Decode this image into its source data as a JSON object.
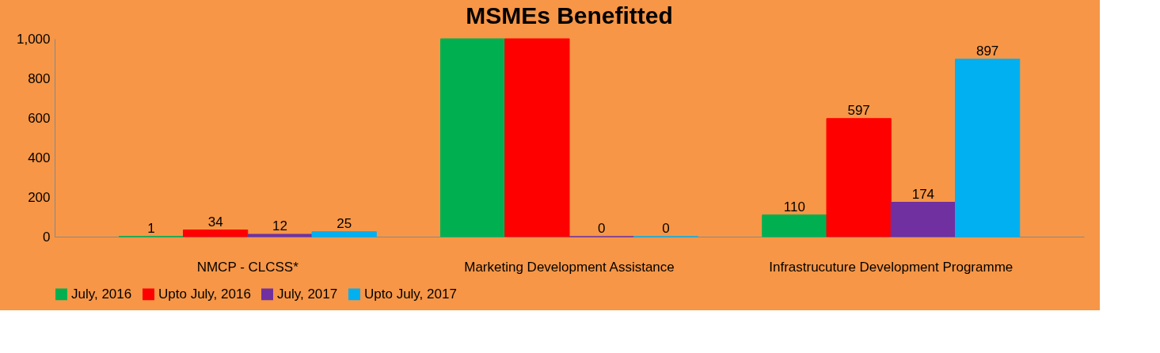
{
  "chart_data": {
    "type": "bar",
    "title": "MSMEs Benefitted",
    "categories": [
      "NMCP - CLCSS*",
      "Marketing Development Assistance",
      "Infrastrucuture Development Programme"
    ],
    "series": [
      {
        "name": "July, 2016",
        "color": "#00b050",
        "values": [
          1,
          1000,
          110
        ],
        "value_labels": [
          "1",
          null,
          "110"
        ]
      },
      {
        "name": "Upto July, 2016",
        "color": "#ff0000",
        "values": [
          34,
          1000,
          597
        ],
        "value_labels": [
          "34",
          null,
          "597"
        ]
      },
      {
        "name": "July, 2017",
        "color": "#7030a0",
        "values": [
          12,
          0,
          174
        ],
        "value_labels": [
          "12",
          "0",
          "174"
        ]
      },
      {
        "name": "Upto July, 2017",
        "color": "#00b0f0",
        "values": [
          25,
          0,
          897
        ],
        "value_labels": [
          "25",
          "0",
          "897"
        ]
      }
    ],
    "ylim": [
      0,
      1000
    ],
    "yticks": [
      0,
      200,
      400,
      600,
      800,
      {
        "value": 1000,
        "label": "1,000"
      }
    ],
    "grid": false,
    "legend": "bottom"
  }
}
